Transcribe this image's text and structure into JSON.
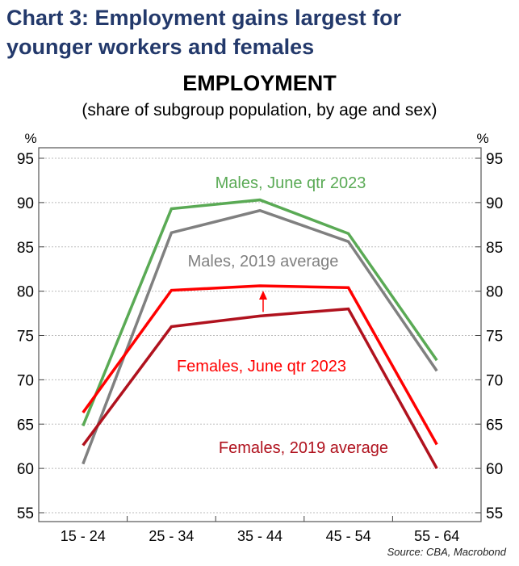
{
  "heading": [
    "Chart 3: Employment gains largest for",
    "younger workers and females"
  ],
  "chart_data": {
    "type": "line",
    "title": "EMPLOYMENT",
    "subtitle": "(share of subgroup population, by age and sex)",
    "ylabel_left": "%",
    "ylabel_right": "%",
    "categories": [
      "15 - 24",
      "25 - 34",
      "35 - 44",
      "45 - 54",
      "55 - 64"
    ],
    "ylim": [
      54,
      97
    ],
    "yticks": [
      55,
      60,
      65,
      70,
      75,
      80,
      85,
      90,
      95
    ],
    "grid": true,
    "series": [
      {
        "name": "Males, June qtr 2023",
        "color": "#5aaa55",
        "values": [
          64.8,
          89.3,
          90.3,
          86.5,
          72.2
        ]
      },
      {
        "name": "Males, 2019 average",
        "color": "#808080",
        "values": [
          60.5,
          86.6,
          89.1,
          85.6,
          71.0
        ]
      },
      {
        "name": "Females, June qtr 2023",
        "color": "#ff0000",
        "values": [
          66.3,
          80.1,
          80.6,
          80.4,
          62.7
        ]
      },
      {
        "name": "Females, 2019 average",
        "color": "#b0121e",
        "values": [
          62.6,
          76.0,
          77.2,
          78.0,
          60.0
        ]
      }
    ],
    "annotation": "arrow from Females 2019 average to Females June qtr 2023 at 35 - 44",
    "source": "Source: CBA, Macrobond"
  }
}
